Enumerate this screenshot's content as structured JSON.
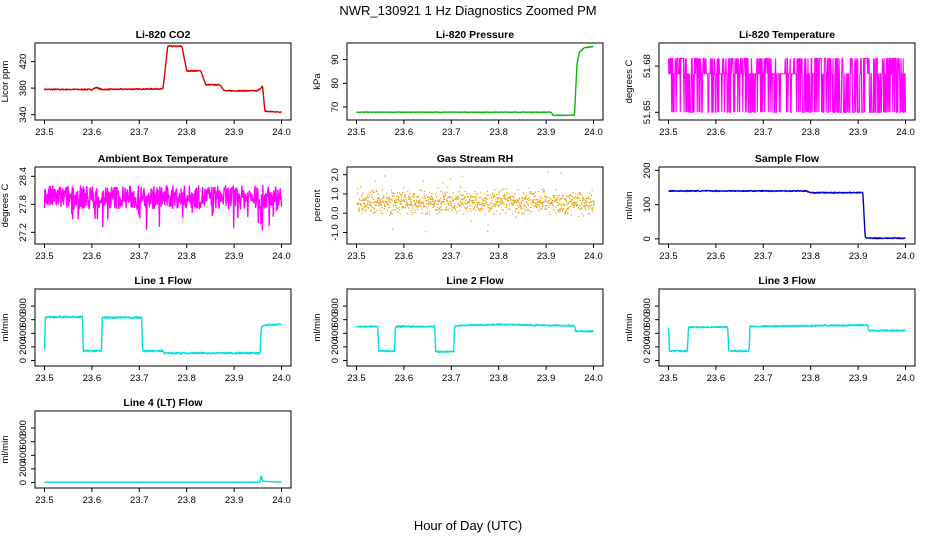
{
  "figure": {
    "title": "NWR_130921  1 Hz Diagnostics Zoomed PM",
    "xlabel": "Hour of Day (UTC)"
  },
  "chart_data": [
    {
      "id": "co2",
      "type": "line",
      "title": "Li-820 CO2",
      "ylabel": "Licor ppm",
      "color": "#dd0000",
      "xlim": [
        23.48,
        24.02
      ],
      "ylim": [
        332,
        448
      ],
      "xticks": [
        "23.5",
        "23.6",
        "23.7",
        "23.8",
        "23.9",
        "24.0"
      ],
      "yticks": [
        "340",
        "380",
        "420"
      ],
      "noise": 0.8,
      "points": [
        [
          23.5,
          378
        ],
        [
          23.6,
          378
        ],
        [
          23.61,
          381
        ],
        [
          23.62,
          378
        ],
        [
          23.75,
          379
        ],
        [
          23.76,
          443
        ],
        [
          23.79,
          443
        ],
        [
          23.8,
          406
        ],
        [
          23.83,
          406
        ],
        [
          23.84,
          385
        ],
        [
          23.87,
          385
        ],
        [
          23.88,
          376
        ],
        [
          23.95,
          376
        ],
        [
          23.96,
          383
        ],
        [
          23.965,
          345
        ],
        [
          24.0,
          344
        ]
      ]
    },
    {
      "id": "pressure",
      "type": "line",
      "title": "Li-820 Pressure",
      "ylabel": "kPa",
      "color": "#00bb00",
      "xlim": [
        23.48,
        24.02
      ],
      "ylim": [
        64.5,
        97
      ],
      "xticks": [
        "23.5",
        "23.6",
        "23.7",
        "23.8",
        "23.9",
        "24.0"
      ],
      "yticks": [
        "70",
        "80",
        "90"
      ],
      "noise": 0.1,
      "points": [
        [
          23.5,
          67.8
        ],
        [
          23.91,
          67.8
        ],
        [
          23.915,
          66.5
        ],
        [
          23.96,
          66.5
        ],
        [
          23.965,
          88
        ],
        [
          23.97,
          93
        ],
        [
          23.98,
          95
        ],
        [
          24.0,
          95.5
        ]
      ]
    },
    {
      "id": "licor-temp",
      "type": "line",
      "title": "Li-820 Temperature",
      "ylabel": "degrees C",
      "color": "#ff00ff",
      "xlim": [
        23.48,
        24.02
      ],
      "ylim": [
        51.645,
        51.695
      ],
      "xticks": [
        "23.5",
        "23.6",
        "23.7",
        "23.8",
        "23.9",
        "24.0"
      ],
      "yticks": [
        "51.65",
        "51.68"
      ],
      "levels": [
        51.65,
        51.675,
        51.685
      ],
      "noise": 0,
      "points": []
    },
    {
      "id": "ambient-temp",
      "type": "line",
      "title": "Ambient Box Temperature",
      "ylabel": "degrees C",
      "color": "#ff00ff",
      "xlim": [
        23.48,
        24.02
      ],
      "ylim": [
        26.95,
        28.6
      ],
      "xticks": [
        "23.5",
        "23.6",
        "23.7",
        "23.8",
        "23.9",
        "24.0"
      ],
      "yticks": [
        "27.2",
        "27.8",
        "28.4"
      ],
      "noise": 0.25,
      "points": [
        [
          23.5,
          27.95
        ],
        [
          24.0,
          27.95
        ]
      ]
    },
    {
      "id": "gas-rh",
      "type": "scatter",
      "title": "Gas Stream RH",
      "ylabel": "percent",
      "color": "#e8a000",
      "xlim": [
        23.48,
        24.02
      ],
      "ylim": [
        -1.6,
        2.4
      ],
      "xticks": [
        "23.5",
        "23.6",
        "23.7",
        "23.8",
        "23.9",
        "24.0"
      ],
      "yticks": [
        "-1.0",
        "0.0",
        "1.0",
        "2.0"
      ],
      "noise": 0.45,
      "points": [
        [
          23.5,
          0.6
        ],
        [
          24.0,
          0.6
        ]
      ]
    },
    {
      "id": "sample-flow",
      "type": "line",
      "title": "Sample Flow",
      "ylabel": "ml/min",
      "color": "#0000cc",
      "xlim": [
        23.48,
        24.02
      ],
      "ylim": [
        -15,
        210
      ],
      "xticks": [
        "23.5",
        "23.6",
        "23.7",
        "23.8",
        "23.9",
        "24.0"
      ],
      "yticks": [
        "0",
        "100",
        "200"
      ],
      "noise": 1.5,
      "points": [
        [
          23.5,
          140
        ],
        [
          23.79,
          140
        ],
        [
          23.8,
          135
        ],
        [
          23.91,
          135
        ],
        [
          23.915,
          5
        ],
        [
          23.92,
          2
        ],
        [
          24.0,
          2
        ]
      ]
    },
    {
      "id": "line1-flow",
      "type": "line",
      "title": "Line 1 Flow",
      "ylabel": "ml/min",
      "color": "#00dddd",
      "xlim": [
        23.48,
        24.02
      ],
      "ylim": [
        -80,
        1050
      ],
      "xticks": [
        "23.5",
        "23.6",
        "23.7",
        "23.8",
        "23.9",
        "24.0"
      ],
      "yticks": [
        "0",
        "200",
        "400",
        "600",
        "800"
      ],
      "noise": 12,
      "points": [
        [
          23.5,
          150
        ],
        [
          23.502,
          640
        ],
        [
          23.58,
          640
        ],
        [
          23.582,
          140
        ],
        [
          23.62,
          140
        ],
        [
          23.622,
          630
        ],
        [
          23.705,
          630
        ],
        [
          23.707,
          140
        ],
        [
          23.75,
          140
        ],
        [
          23.752,
          110
        ],
        [
          23.955,
          110
        ],
        [
          23.957,
          480
        ],
        [
          23.965,
          520
        ],
        [
          24.0,
          530
        ]
      ]
    },
    {
      "id": "line2-flow",
      "type": "line",
      "title": "Line 2 Flow",
      "ylabel": "ml/min",
      "color": "#00dddd",
      "xlim": [
        23.48,
        24.02
      ],
      "ylim": [
        -80,
        1050
      ],
      "xticks": [
        "23.5",
        "23.6",
        "23.7",
        "23.8",
        "23.9",
        "24.0"
      ],
      "yticks": [
        "0",
        "200",
        "400",
        "600",
        "800"
      ],
      "noise": 10,
      "points": [
        [
          23.5,
          500
        ],
        [
          23.545,
          500
        ],
        [
          23.547,
          140
        ],
        [
          23.58,
          140
        ],
        [
          23.582,
          500
        ],
        [
          23.665,
          500
        ],
        [
          23.667,
          130
        ],
        [
          23.705,
          130
        ],
        [
          23.707,
          510
        ],
        [
          23.8,
          530
        ],
        [
          23.96,
          510
        ],
        [
          23.962,
          430
        ],
        [
          24.0,
          430
        ]
      ]
    },
    {
      "id": "line3-flow",
      "type": "line",
      "title": "Line 3 Flow",
      "ylabel": "ml/min",
      "color": "#00dddd",
      "xlim": [
        23.48,
        24.02
      ],
      "ylim": [
        -80,
        1050
      ],
      "xticks": [
        "23.5",
        "23.6",
        "23.7",
        "23.8",
        "23.9",
        "24.0"
      ],
      "yticks": [
        "0",
        "200",
        "400",
        "600",
        "800"
      ],
      "noise": 10,
      "points": [
        [
          23.5,
          480
        ],
        [
          23.502,
          140
        ],
        [
          23.54,
          140
        ],
        [
          23.542,
          490
        ],
        [
          23.625,
          490
        ],
        [
          23.627,
          140
        ],
        [
          23.67,
          140
        ],
        [
          23.672,
          500
        ],
        [
          23.8,
          510
        ],
        [
          23.92,
          520
        ],
        [
          23.922,
          440
        ],
        [
          24.0,
          440
        ]
      ]
    },
    {
      "id": "line4-flow",
      "type": "line",
      "title": "Line 4 (LT) Flow",
      "ylabel": "ml/min",
      "color": "#00dddd",
      "xlim": [
        23.48,
        24.02
      ],
      "ylim": [
        -80,
        1050
      ],
      "xticks": [
        "23.5",
        "23.6",
        "23.7",
        "23.8",
        "23.9",
        "24.0"
      ],
      "yticks": [
        "0",
        "200",
        "400",
        "600",
        "800"
      ],
      "noise": 2,
      "points": [
        [
          23.5,
          5
        ],
        [
          23.955,
          5
        ],
        [
          23.957,
          110
        ],
        [
          23.96,
          20
        ],
        [
          24.0,
          5
        ]
      ]
    }
  ]
}
